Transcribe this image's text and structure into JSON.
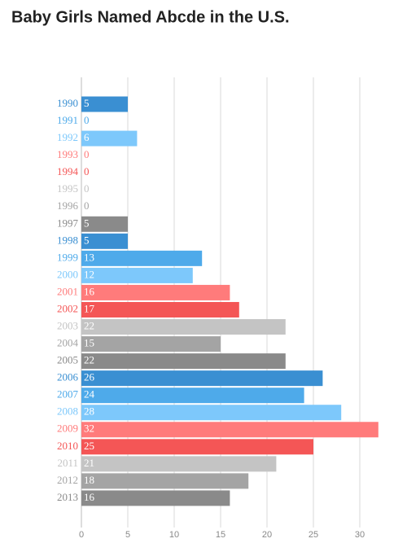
{
  "chart_data": {
    "type": "bar",
    "orientation": "horizontal",
    "title": "Baby Girls Named Abcde in the U.S.",
    "categories": [
      "1990",
      "1991",
      "1992",
      "1993",
      "1994",
      "1995",
      "1996",
      "1997",
      "1998",
      "1999",
      "2000",
      "2001",
      "2002",
      "2003",
      "2004",
      "2005",
      "2006",
      "2007",
      "2008",
      "2009",
      "2010",
      "2011",
      "2012",
      "2013"
    ],
    "values": [
      5,
      0,
      6,
      0,
      0,
      0,
      0,
      5,
      5,
      13,
      12,
      16,
      17,
      22,
      15,
      22,
      26,
      24,
      28,
      32,
      25,
      21,
      18,
      16
    ],
    "colors": [
      "#3a8fd2",
      "#4eaaea",
      "#7dc8fb",
      "#ff7b7b",
      "#f45656",
      "#c4c4c4",
      "#a4a4a4",
      "#8a8a8a",
      "#3a8fd2",
      "#4eaaea",
      "#7dc8fb",
      "#ff7b7b",
      "#f45656",
      "#c4c4c4",
      "#a4a4a4",
      "#8a8a8a",
      "#3a8fd2",
      "#4eaaea",
      "#7dc8fb",
      "#ff7b7b",
      "#f45656",
      "#c4c4c4",
      "#a4a4a4",
      "#8a8a8a"
    ],
    "xlim": [
      0,
      35
    ],
    "xticks": [
      0,
      5,
      10,
      15,
      20,
      25,
      30
    ],
    "grid": true
  }
}
